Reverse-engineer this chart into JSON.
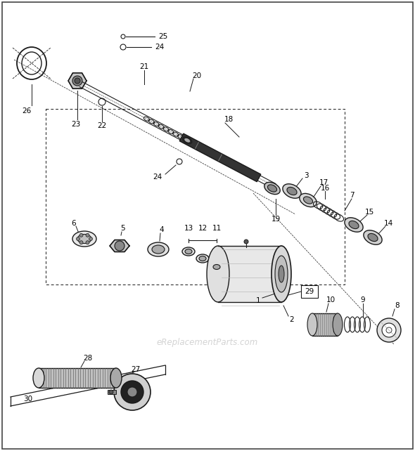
{
  "background_color": "#ffffff",
  "line_color": "#1a1a1a",
  "watermark": "eReplacementParts.com",
  "fig_width": 5.9,
  "fig_height": 6.42,
  "dpi": 100
}
